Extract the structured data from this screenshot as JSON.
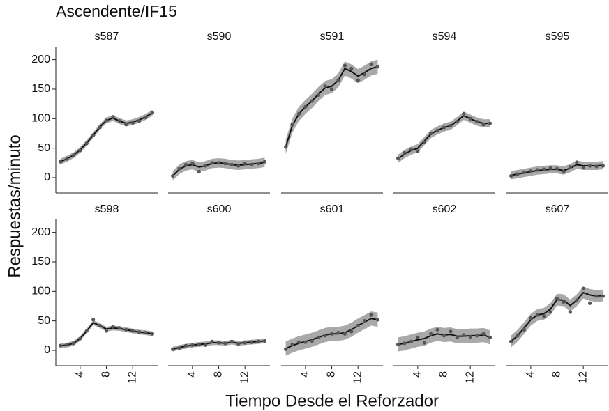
{
  "chart_data": {
    "type": "line",
    "title": "Ascendente/IF15",
    "xlabel": "Tiempo Desde el Reforzador",
    "ylabel": "Respuestas/minuto",
    "x": [
      1,
      2,
      3,
      4,
      5,
      6,
      7,
      8,
      9,
      10,
      11,
      12,
      13,
      14,
      15
    ],
    "xlim": [
      0.3,
      15.8
    ],
    "xticks": [
      4,
      8,
      12
    ],
    "ylim": [
      -26,
      222
    ],
    "yticks": [
      0,
      50,
      100,
      150,
      200
    ],
    "point_color": "#555555",
    "line_color": "#111111",
    "band_color": "#a9a9a9",
    "panels": [
      {
        "name": "s587",
        "values": [
          27,
          32,
          38,
          46,
          58,
          72,
          85,
          97,
          103,
          96,
          90,
          93,
          96,
          102,
          110
        ],
        "fit": [
          27,
          32,
          38,
          47,
          59,
          72,
          86,
          97,
          101,
          96,
          92,
          94,
          98,
          103,
          110
        ],
        "band": 5
      },
      {
        "name": "s590",
        "values": [
          3,
          15,
          22,
          24,
          10,
          20,
          25,
          25,
          24,
          22,
          20,
          24,
          22,
          24,
          27
        ],
        "fit": [
          3,
          14,
          20,
          22,
          18,
          20,
          24,
          25,
          24,
          22,
          21,
          22,
          23,
          24,
          26
        ],
        "band": 8
      },
      {
        "name": "s591",
        "values": [
          52,
          90,
          108,
          120,
          130,
          140,
          155,
          150,
          165,
          190,
          185,
          165,
          175,
          192,
          188
        ],
        "fit": [
          52,
          88,
          108,
          120,
          130,
          142,
          152,
          155,
          165,
          185,
          180,
          172,
          178,
          185,
          188
        ],
        "band": 12
      },
      {
        "name": "s594",
        "values": [
          33,
          42,
          48,
          45,
          60,
          75,
          80,
          85,
          88,
          95,
          108,
          100,
          95,
          90,
          92
        ],
        "fit": [
          32,
          40,
          46,
          50,
          62,
          74,
          80,
          85,
          88,
          96,
          105,
          100,
          95,
          92,
          92
        ],
        "band": 7
      },
      {
        "name": "s595",
        "values": [
          3,
          6,
          9,
          11,
          13,
          14,
          16,
          15,
          10,
          18,
          26,
          17,
          20,
          19,
          20
        ],
        "fit": [
          4,
          6,
          8,
          10,
          12,
          13,
          14,
          14,
          12,
          16,
          22,
          20,
          20,
          20,
          21
        ],
        "band": 7
      },
      {
        "name": "s598",
        "values": [
          8,
          10,
          12,
          20,
          33,
          52,
          42,
          33,
          40,
          38,
          35,
          33,
          31,
          30,
          28
        ],
        "fit": [
          8,
          9,
          12,
          20,
          33,
          47,
          42,
          36,
          38,
          37,
          35,
          33,
          31,
          30,
          28
        ],
        "band": 4
      },
      {
        "name": "s600",
        "values": [
          2,
          4,
          8,
          9,
          10,
          9,
          15,
          13,
          12,
          15,
          11,
          13,
          14,
          15,
          16
        ],
        "fit": [
          2,
          5,
          7,
          9,
          10,
          11,
          13,
          13,
          12,
          14,
          12,
          13,
          14,
          15,
          16
        ],
        "band": 4
      },
      {
        "name": "s601",
        "values": [
          2,
          10,
          14,
          14,
          16,
          22,
          25,
          28,
          30,
          28,
          32,
          42,
          50,
          60,
          52
        ],
        "fit": [
          3,
          8,
          12,
          15,
          18,
          22,
          26,
          28,
          28,
          30,
          35,
          42,
          48,
          54,
          52
        ],
        "band": 12
      },
      {
        "name": "s602",
        "values": [
          10,
          12,
          15,
          22,
          13,
          28,
          35,
          25,
          32,
          22,
          26,
          23,
          25,
          28,
          22
        ],
        "fit": [
          10,
          12,
          15,
          18,
          20,
          25,
          28,
          26,
          27,
          24,
          24,
          25,
          25,
          26,
          22
        ],
        "band": 12
      },
      {
        "name": "s607",
        "values": [
          15,
          25,
          35,
          55,
          60,
          58,
          65,
          88,
          82,
          65,
          85,
          105,
          80,
          92,
          92
        ],
        "fit": [
          15,
          25,
          38,
          52,
          60,
          62,
          70,
          86,
          85,
          76,
          85,
          98,
          94,
          92,
          93
        ],
        "band": 10
      }
    ]
  }
}
